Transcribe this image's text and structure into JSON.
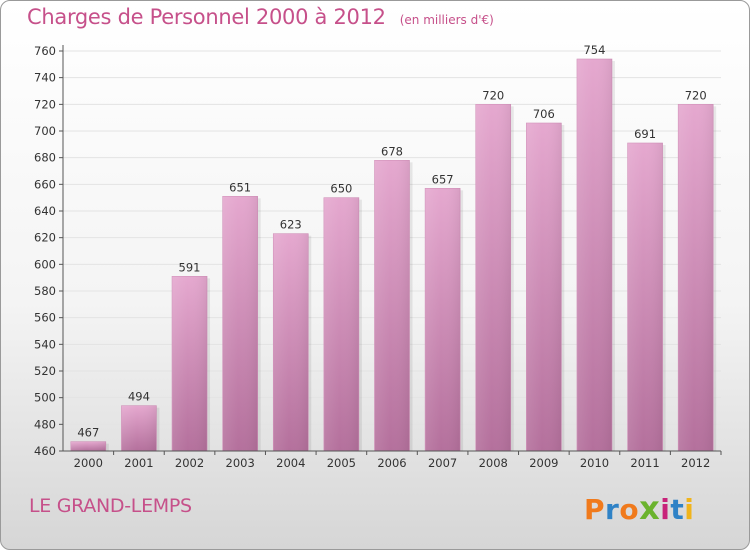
{
  "header": {
    "title": "Charges de Personnel 2000 à 2012",
    "subtitle": "(en milliers d'€)"
  },
  "footer": {
    "commune": "LE GRAND-LEMPS",
    "logo_text": "Proxiti"
  },
  "colors": {
    "title": "#c6508a",
    "bar_top": "#e5a8cf",
    "bar_bottom": "#b4709c",
    "grid": "#e3e3e3",
    "logo": [
      "#f07a1c",
      "#2f82c6",
      "#f07a1c",
      "#6bb32e",
      "#c8237a",
      "#2f82c6",
      "#f0b41c"
    ]
  },
  "chart_data": {
    "type": "bar",
    "title": "Charges de Personnel 2000 à 2012",
    "subtitle": "(en milliers d'€)",
    "categories": [
      "2000",
      "2001",
      "2002",
      "2003",
      "2004",
      "2005",
      "2006",
      "2007",
      "2008",
      "2009",
      "2010",
      "2011",
      "2012"
    ],
    "values": [
      467,
      494,
      591,
      651,
      623,
      650,
      678,
      657,
      720,
      706,
      754,
      691,
      720
    ],
    "ylim": [
      460,
      760
    ],
    "yticks": [
      460,
      480,
      500,
      520,
      540,
      560,
      580,
      600,
      620,
      640,
      660,
      680,
      700,
      720,
      740,
      760
    ],
    "grid": true,
    "data_labels": true
  }
}
